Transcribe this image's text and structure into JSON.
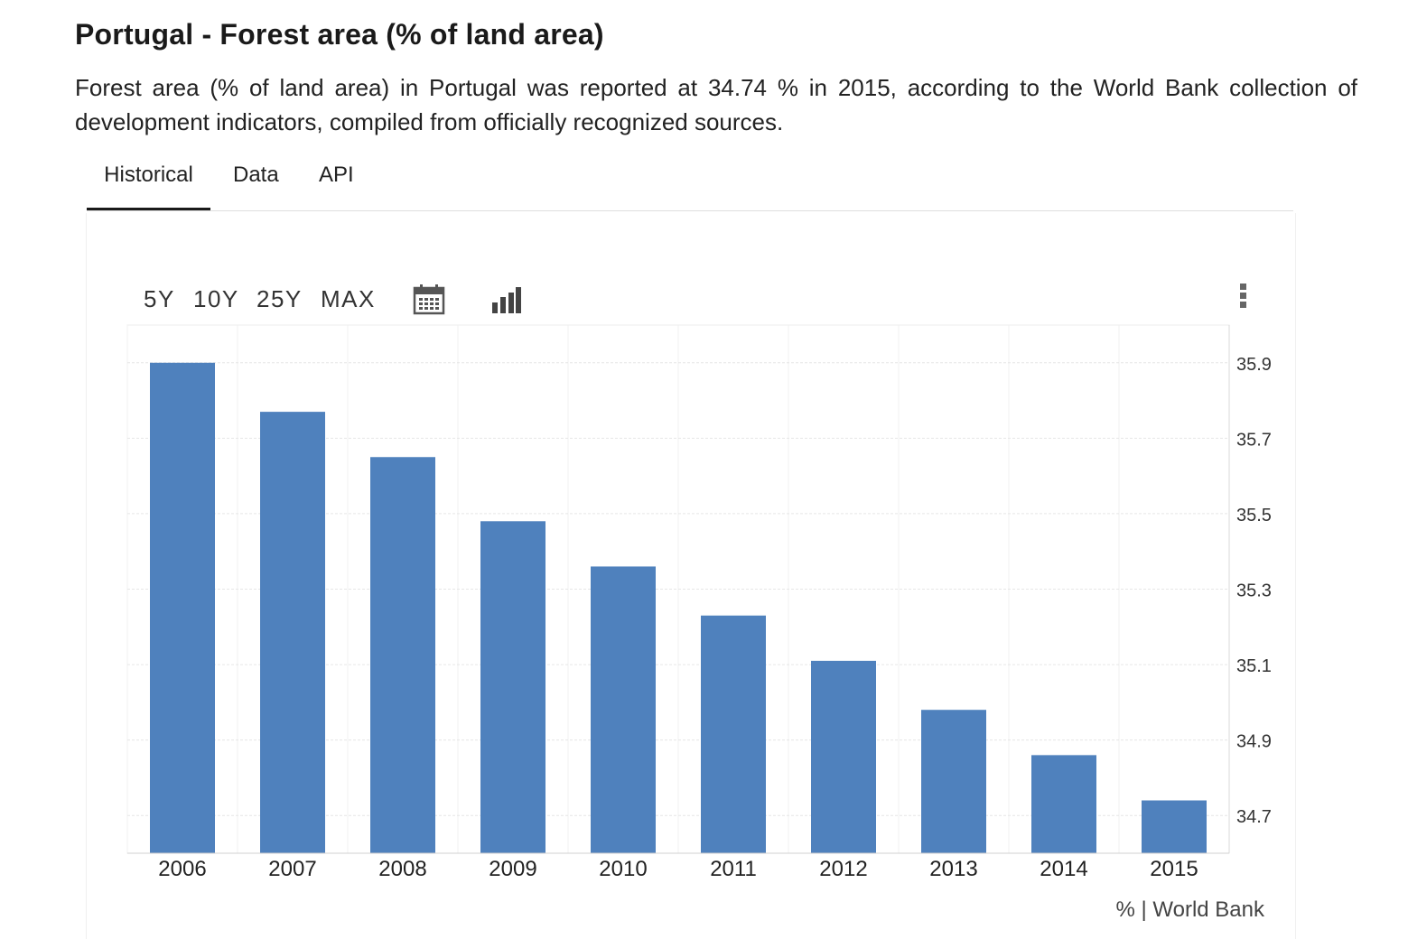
{
  "header": {
    "title": "Portugal - Forest area (% of land area)",
    "description": "Forest area (% of land area) in Portugal was reported at 34.74 % in 2015, according to the World Bank collection of development indicators, compiled from officially recognized sources."
  },
  "tabs": [
    {
      "label": "Historical",
      "active": true
    },
    {
      "label": "Data",
      "active": false
    },
    {
      "label": "API",
      "active": false
    }
  ],
  "toolbar": {
    "ranges": [
      "5Y",
      "10Y",
      "25Y",
      "MAX"
    ],
    "icons": [
      "calendar-icon",
      "bar-chart-icon",
      "more-vertical-icon"
    ]
  },
  "source": "% | World Bank",
  "colors": {
    "bar": "#4f81bd",
    "grid": "#e6e6e6",
    "text": "#1a1a1a"
  },
  "chart_data": {
    "type": "bar",
    "categories": [
      "2006",
      "2007",
      "2008",
      "2009",
      "2010",
      "2011",
      "2012",
      "2013",
      "2014",
      "2015"
    ],
    "values": [
      35.9,
      35.77,
      35.65,
      35.48,
      35.36,
      35.23,
      35.11,
      34.98,
      34.86,
      34.74
    ],
    "ylim": [
      34.6,
      36.0
    ],
    "yticks": [
      34.7,
      34.9,
      35.1,
      35.3,
      35.5,
      35.7,
      35.9
    ],
    "ytick_labels": [
      "34.7",
      "34.9",
      "35.1",
      "35.3",
      "35.5",
      "35.7",
      "35.9"
    ],
    "y_axis_side": "right",
    "grid": true,
    "title": "",
    "xlabel": "",
    "ylabel": ""
  }
}
